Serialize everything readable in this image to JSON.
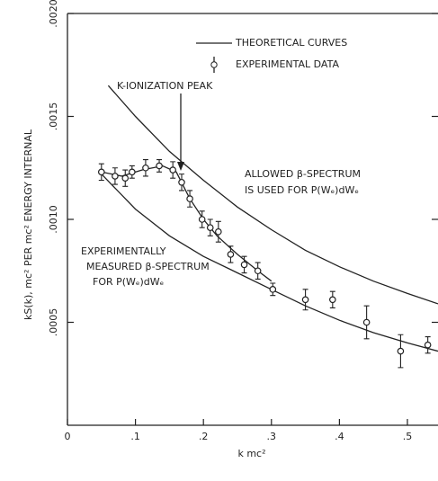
{
  "chart_data": {
    "type": "scatter",
    "xlabel": "k mc²",
    "ylabel": "kS(k), mc² PER mc² ENERGY INTERNAL",
    "xlim": [
      0,
      0.545
    ],
    "ylim": [
      0,
      0.002
    ],
    "xticks": [
      0,
      {
        "value": 0.1,
        "label": ".1"
      },
      {
        "value": 0.2,
        "label": ".2"
      },
      {
        "value": 0.3,
        "label": ".3"
      },
      {
        "value": 0.4,
        "label": ".4"
      },
      {
        "value": 0.5,
        "label": ".5"
      }
    ],
    "yticks": [
      {
        "value": 0.0005,
        "label": ".0005"
      },
      {
        "value": 0.001,
        "label": ".0010"
      },
      {
        "value": 0.0015,
        "label": ".0015"
      },
      {
        "value": 0.002,
        "label": ".0020"
      }
    ],
    "legend": [
      "THEORETICAL CURVES",
      "EXPERIMENTAL DATA"
    ],
    "annotations": [
      "K-IONIZATION PEAK",
      "ALLOWED β-SPECTRUM",
      "IS USED FOR P(Wₑ)dWₑ",
      "EXPERIMENTALLY",
      "MEASURED β-SPECTRUM",
      "FOR P(Wₑ)dWₑ"
    ],
    "color": "#222222",
    "data": {
      "x": [
        0.05,
        0.07,
        0.085,
        0.095,
        0.115,
        0.135,
        0.155,
        0.168,
        0.18,
        0.198,
        0.21,
        0.222,
        0.24,
        0.26,
        0.28,
        0.302,
        0.35,
        0.39,
        0.44,
        0.49,
        0.53
      ],
      "values": [
        0.00123,
        0.00121,
        0.0012,
        0.00123,
        0.00125,
        0.00126,
        0.00124,
        0.00118,
        0.0011,
        0.001,
        0.00096,
        0.00094,
        0.00083,
        0.00078,
        0.00075,
        0.00066,
        0.00061,
        0.00061,
        0.0005,
        0.00036,
        0.00039
      ],
      "errors": [
        4e-05,
        4e-05,
        4e-05,
        3e-05,
        4e-05,
        3e-05,
        4e-05,
        4e-05,
        4e-05,
        4e-05,
        4e-05,
        5e-05,
        4e-05,
        4e-05,
        4e-05,
        3e-05,
        5e-05,
        4e-05,
        8e-05,
        8e-05,
        4e-05
      ]
    },
    "curves": [
      {
        "x": [
          0.06,
          0.1,
          0.15,
          0.2,
          0.25,
          0.3,
          0.35,
          0.4,
          0.45,
          0.5,
          0.545
        ],
        "values": [
          0.00165,
          0.0015,
          0.00133,
          0.00119,
          0.00106,
          0.00095,
          0.00085,
          0.00077,
          0.0007,
          0.00064,
          0.00059
        ]
      },
      {
        "x": [
          0.05,
          0.1,
          0.15,
          0.2,
          0.25,
          0.3,
          0.35,
          0.4,
          0.45,
          0.5,
          0.545
        ],
        "values": [
          0.00122,
          0.00105,
          0.00092,
          0.00082,
          0.00074,
          0.00066,
          0.00058,
          0.00051,
          0.00045,
          0.0004,
          0.00036
        ]
      },
      {
        "x": [
          0.05,
          0.08,
          0.11,
          0.14,
          0.16,
          0.18,
          0.2,
          0.22,
          0.25,
          0.28,
          0.3
        ],
        "values": [
          0.00123,
          0.00121,
          0.00124,
          0.00126,
          0.00123,
          0.0011,
          0.001,
          0.00092,
          0.00083,
          0.00075,
          0.0007
        ]
      }
    ]
  }
}
